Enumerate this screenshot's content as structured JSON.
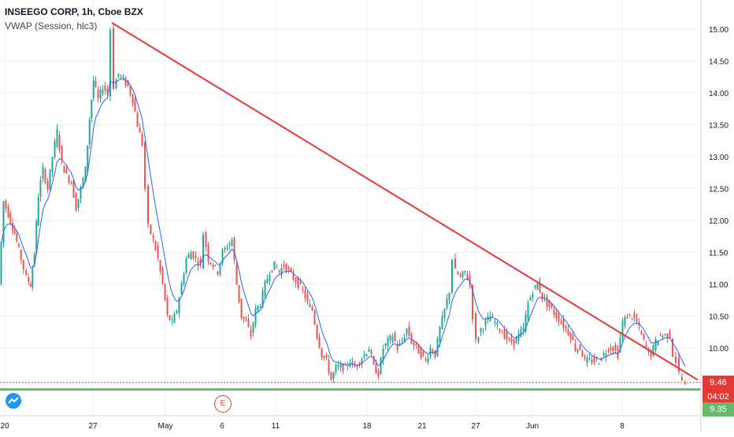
{
  "header": {
    "title": "INSEEGO CORP, 1h, Cboe BZX",
    "indicator": "VWAP (Session, hlc3)"
  },
  "markers": {
    "earnings_label": "E"
  },
  "price_badges": {
    "last_price": "9.46",
    "countdown": "04:02",
    "support_price": "9.35"
  },
  "colors": {
    "up": "#26a69a",
    "down": "#ef5350",
    "vwap": "#2962ff",
    "trendline": "#e53935",
    "support": "#66bb6a",
    "grid": "#eef0f3"
  },
  "chart_data": {
    "type": "candlestick",
    "title": "INSEEGO CORP, 1h, Cboe BZX",
    "ylim": [
      9.2,
      15.3
    ],
    "y_ticks": [
      "15.00",
      "14.50",
      "14.00",
      "13.50",
      "13.00",
      "12.50",
      "12.00",
      "11.50",
      "11.00",
      "10.50",
      "10.00"
    ],
    "x_ticks": [
      "20",
      "27",
      "May",
      "6",
      "11",
      "18",
      "21",
      "27",
      "Jun",
      "8"
    ],
    "grid": true,
    "close_path": [
      [
        0,
        11.0
      ],
      [
        6,
        12.3
      ],
      [
        12,
        12.1
      ],
      [
        20,
        11.8
      ],
      [
        28,
        11.4
      ],
      [
        35,
        11.1
      ],
      [
        40,
        11.0
      ],
      [
        45,
        11.5
      ],
      [
        50,
        12.4
      ],
      [
        56,
        12.8
      ],
      [
        62,
        12.5
      ],
      [
        68,
        13.0
      ],
      [
        74,
        13.4
      ],
      [
        80,
        12.9
      ],
      [
        86,
        12.7
      ],
      [
        92,
        12.6
      ],
      [
        98,
        12.2
      ],
      [
        104,
        12.5
      ],
      [
        110,
        12.8
      ],
      [
        115,
        13.6
      ],
      [
        120,
        14.2
      ],
      [
        126,
        13.9
      ],
      [
        132,
        14.1
      ],
      [
        138,
        14.0
      ],
      [
        142,
        15.0
      ],
      [
        146,
        14.1
      ],
      [
        152,
        14.3
      ],
      [
        158,
        14.2
      ],
      [
        164,
        14.1
      ],
      [
        170,
        13.9
      ],
      [
        176,
        13.5
      ],
      [
        182,
        13.2
      ],
      [
        186,
        12.5
      ],
      [
        190,
        11.9
      ],
      [
        196,
        11.7
      ],
      [
        202,
        11.4
      ],
      [
        208,
        11.0
      ],
      [
        214,
        10.5
      ],
      [
        220,
        10.4
      ],
      [
        226,
        10.6
      ],
      [
        232,
        11.0
      ],
      [
        238,
        11.4
      ],
      [
        244,
        11.5
      ],
      [
        250,
        11.4
      ],
      [
        256,
        11.3
      ],
      [
        260,
        11.8
      ],
      [
        266,
        11.4
      ],
      [
        272,
        11.3
      ],
      [
        278,
        11.2
      ],
      [
        284,
        11.5
      ],
      [
        290,
        11.6
      ],
      [
        296,
        11.7
      ],
      [
        302,
        11.0
      ],
      [
        308,
        10.5
      ],
      [
        314,
        10.4
      ],
      [
        320,
        10.2
      ],
      [
        326,
        10.6
      ],
      [
        332,
        10.7
      ],
      [
        338,
        11.0
      ],
      [
        344,
        11.2
      ],
      [
        350,
        11.3
      ],
      [
        356,
        11.2
      ],
      [
        362,
        11.3
      ],
      [
        368,
        11.2
      ],
      [
        374,
        11.1
      ],
      [
        380,
        11.0
      ],
      [
        386,
        10.9
      ],
      [
        392,
        10.7
      ],
      [
        398,
        10.6
      ],
      [
        404,
        10.2
      ],
      [
        410,
        9.9
      ],
      [
        416,
        9.8
      ],
      [
        422,
        9.5
      ],
      [
        428,
        9.7
      ],
      [
        434,
        9.7
      ],
      [
        440,
        9.7
      ],
      [
        446,
        9.8
      ],
      [
        452,
        9.7
      ],
      [
        458,
        9.8
      ],
      [
        464,
        9.9
      ],
      [
        470,
        10.0
      ],
      [
        476,
        9.7
      ],
      [
        482,
        9.6
      ],
      [
        488,
        10.0
      ],
      [
        494,
        10.1
      ],
      [
        500,
        10.2
      ],
      [
        506,
        10.0
      ],
      [
        512,
        10.1
      ],
      [
        518,
        10.3
      ],
      [
        524,
        10.1
      ],
      [
        530,
        10.0
      ],
      [
        536,
        9.9
      ],
      [
        542,
        9.8
      ],
      [
        548,
        10.0
      ],
      [
        554,
        9.9
      ],
      [
        560,
        10.3
      ],
      [
        566,
        10.6
      ],
      [
        572,
        10.9
      ],
      [
        576,
        11.4
      ],
      [
        580,
        11.2
      ],
      [
        586,
        11.1
      ],
      [
        592,
        11.2
      ],
      [
        598,
        11.0
      ],
      [
        602,
        10.5
      ],
      [
        606,
        10.1
      ],
      [
        612,
        10.3
      ],
      [
        618,
        10.4
      ],
      [
        624,
        10.5
      ],
      [
        630,
        10.4
      ],
      [
        636,
        10.3
      ],
      [
        642,
        10.2
      ],
      [
        648,
        10.1
      ],
      [
        654,
        10.1
      ],
      [
        660,
        10.2
      ],
      [
        666,
        10.3
      ],
      [
        672,
        10.7
      ],
      [
        678,
        10.9
      ],
      [
        684,
        11.0
      ],
      [
        690,
        10.8
      ],
      [
        696,
        10.7
      ],
      [
        702,
        10.6
      ],
      [
        708,
        10.5
      ],
      [
        714,
        10.4
      ],
      [
        720,
        10.3
      ],
      [
        726,
        10.2
      ],
      [
        732,
        10.0
      ],
      [
        738,
        10.0
      ],
      [
        744,
        9.8
      ],
      [
        750,
        9.8
      ],
      [
        756,
        9.8
      ],
      [
        762,
        9.8
      ],
      [
        768,
        9.9
      ],
      [
        774,
        10.0
      ],
      [
        780,
        10.0
      ],
      [
        786,
        9.9
      ],
      [
        792,
        10.4
      ],
      [
        798,
        10.5
      ],
      [
        804,
        10.5
      ],
      [
        810,
        10.4
      ],
      [
        816,
        10.2
      ],
      [
        822,
        10.0
      ],
      [
        828,
        9.9
      ],
      [
        834,
        10.1
      ],
      [
        840,
        10.2
      ],
      [
        846,
        10.2
      ],
      [
        852,
        10.2
      ],
      [
        856,
        9.9
      ],
      [
        860,
        9.8
      ],
      [
        864,
        9.6
      ],
      [
        868,
        9.5
      ],
      [
        872,
        9.4
      ]
    ],
    "trendline": [
      [
        142,
        15.1
      ],
      [
        886,
        9.5
      ]
    ],
    "support_level": 9.35,
    "last_price_level": 9.46
  }
}
